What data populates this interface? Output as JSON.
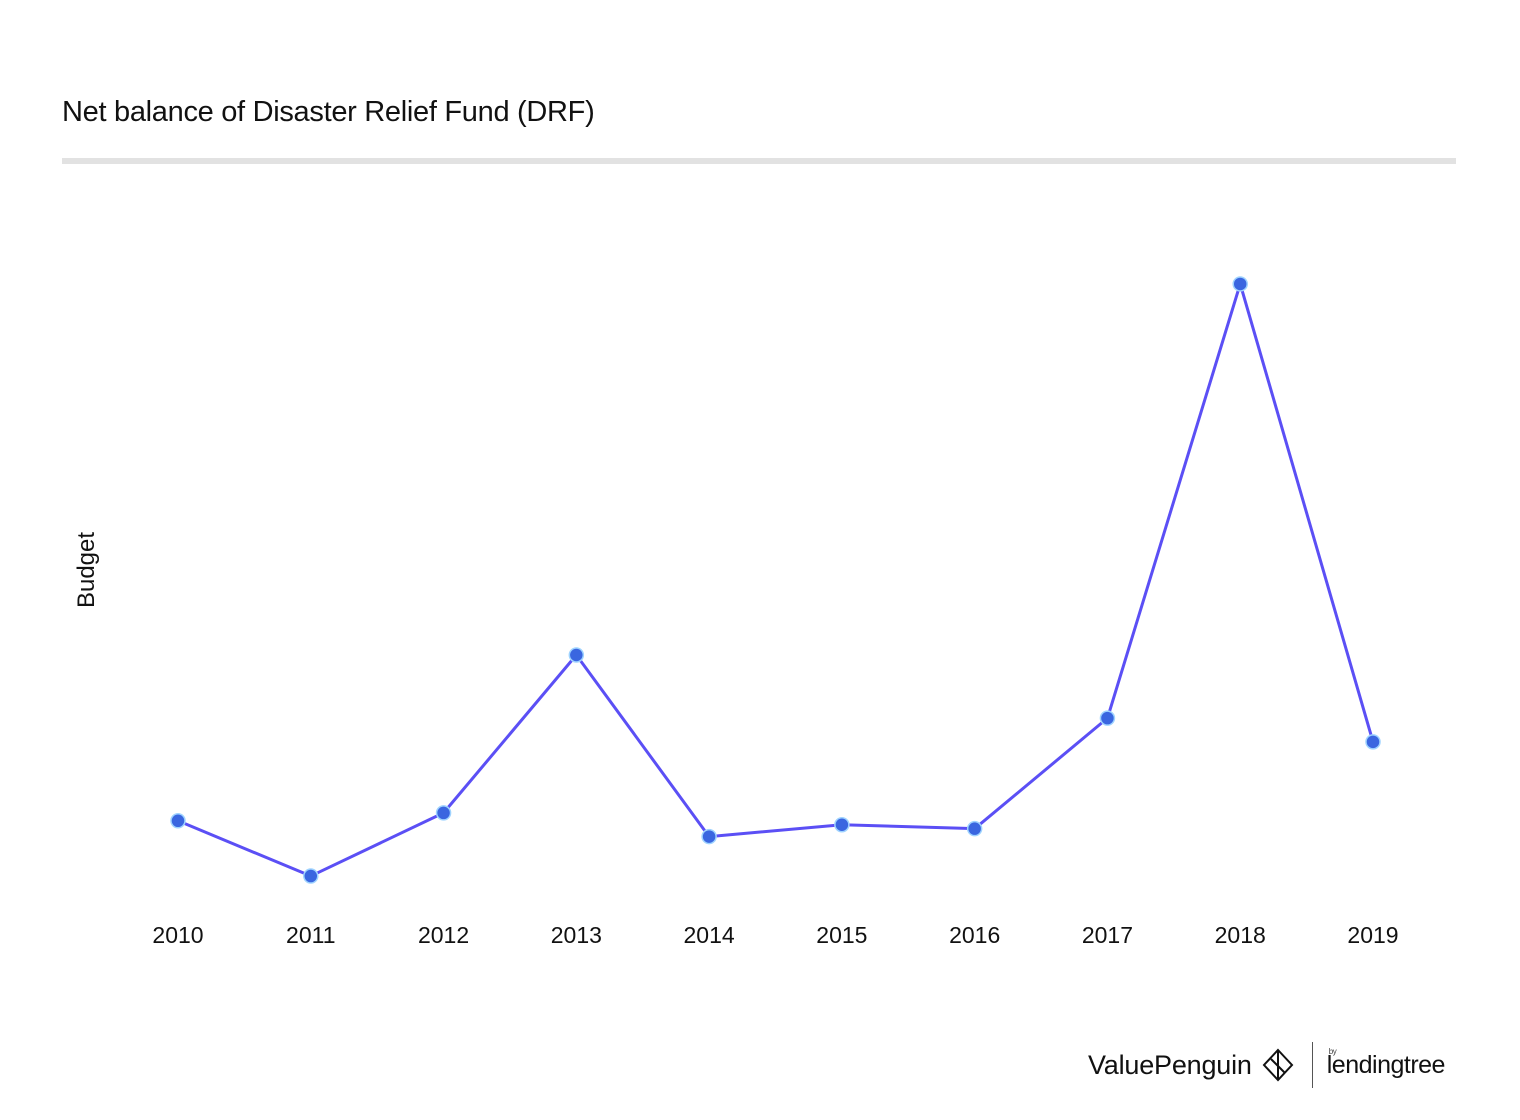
{
  "title": "Net balance of Disaster Relief Fund (DRF)",
  "colors": {
    "line": "#5b4ff5",
    "point": "#3a66e0",
    "point_outline": "#9fd3ff",
    "rule": "#e2e2e2"
  },
  "chart_data": {
    "type": "line",
    "title": "Net balance of Disaster Relief Fund (DRF)",
    "xlabel": "",
    "ylabel": "Budget",
    "categories": [
      "2010",
      "2011",
      "2012",
      "2013",
      "2014",
      "2015",
      "2016",
      "2017",
      "2018",
      "2019"
    ],
    "series": [
      {
        "values": [
          1.7,
          1.0,
          1.8,
          3.8,
          1.5,
          1.65,
          1.6,
          3.0,
          8.5,
          2.7
        ]
      }
    ],
    "ylim": [
      0,
      9.5
    ],
    "y_ticks_shown": false,
    "grid": false,
    "legend": "none"
  },
  "branding": {
    "valuepenguin": "ValuePenguin",
    "lendingtree_by": "by",
    "lendingtree": "lendingtree",
    "valuepenguin_icon": "penguin-diamond-icon"
  }
}
